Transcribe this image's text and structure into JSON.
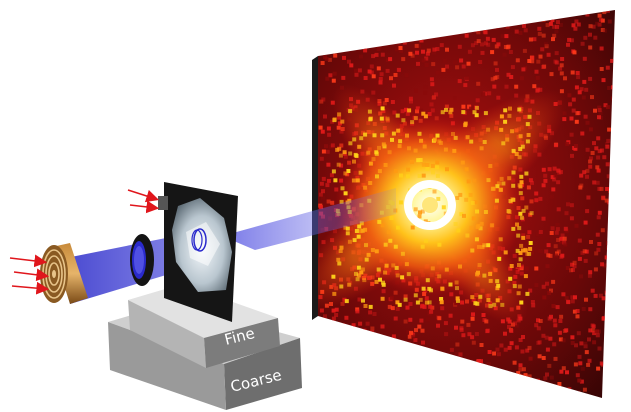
{
  "stage": {
    "fine_label": "Fine",
    "coarse_label": "Coarse"
  },
  "colors": {
    "beam": "#3a3ad8",
    "pattern_background": "#3a0606",
    "pattern_red": "#e21a1a",
    "pattern_orange": "#ff8a10",
    "pattern_yellow": "#ffe23a",
    "arrow": "#e0161c",
    "stage_top": "#d9d9d9",
    "stage_side": "#8c8c8c"
  },
  "icons": {
    "zone_plate": "zone-plate-icon",
    "lens": "lens-ring-icon",
    "sample": "sample-crystal-icon",
    "detector": "diffraction-detector-icon"
  }
}
